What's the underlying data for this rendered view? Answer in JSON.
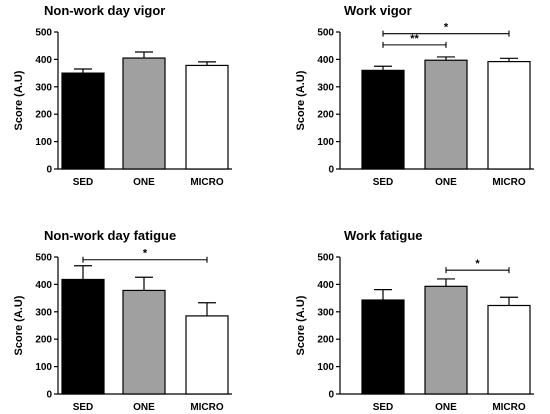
{
  "chart_data": [
    {
      "type": "bar",
      "title": "Non-work day vigor",
      "ylabel": "Score (A.U)",
      "ylim": [
        0,
        500
      ],
      "yticks": [
        0,
        100,
        200,
        300,
        400,
        500
      ],
      "categories": [
        "SED",
        "ONE",
        "MICRO"
      ],
      "values": [
        350,
        405,
        378
      ],
      "errors": [
        15,
        22,
        13
      ],
      "colors": [
        "#000000",
        "#a0a0a0",
        "#ffffff"
      ],
      "significance": []
    },
    {
      "type": "bar",
      "title": "Work vigor",
      "ylabel": "Score (A.U)",
      "ylim": [
        0,
        500
      ],
      "yticks": [
        0,
        100,
        200,
        300,
        400,
        500
      ],
      "categories": [
        "SED",
        "ONE",
        "MICRO"
      ],
      "values": [
        360,
        397,
        392
      ],
      "errors": [
        15,
        12,
        12
      ],
      "colors": [
        "#000000",
        "#a0a0a0",
        "#ffffff"
      ],
      "significance": [
        {
          "from": 0,
          "to": 1,
          "label": "**",
          "y": 453
        },
        {
          "from": 0,
          "to": 2,
          "label": "*",
          "y": 494
        }
      ]
    },
    {
      "type": "bar",
      "title": "Non-work day fatigue",
      "ylabel": "Score (A.U)",
      "ylim": [
        0,
        500
      ],
      "yticks": [
        0,
        100,
        200,
        300,
        400,
        500
      ],
      "categories": [
        "SED",
        "ONE",
        "MICRO"
      ],
      "values": [
        418,
        378,
        285
      ],
      "errors": [
        50,
        48,
        48
      ],
      "colors": [
        "#000000",
        "#a0a0a0",
        "#ffffff"
      ],
      "significance": [
        {
          "from": 0,
          "to": 2,
          "label": "*",
          "y": 490
        }
      ]
    },
    {
      "type": "bar",
      "title": "Work fatigue",
      "ylabel": "Score (A.U)",
      "ylim": [
        0,
        500
      ],
      "yticks": [
        0,
        100,
        200,
        300,
        400,
        500
      ],
      "categories": [
        "SED",
        "ONE",
        "MICRO"
      ],
      "values": [
        343,
        393,
        323
      ],
      "errors": [
        38,
        27,
        30
      ],
      "colors": [
        "#000000",
        "#a0a0a0",
        "#ffffff"
      ],
      "significance": [
        {
          "from": 1,
          "to": 2,
          "label": "*",
          "y": 452
        }
      ]
    }
  ]
}
